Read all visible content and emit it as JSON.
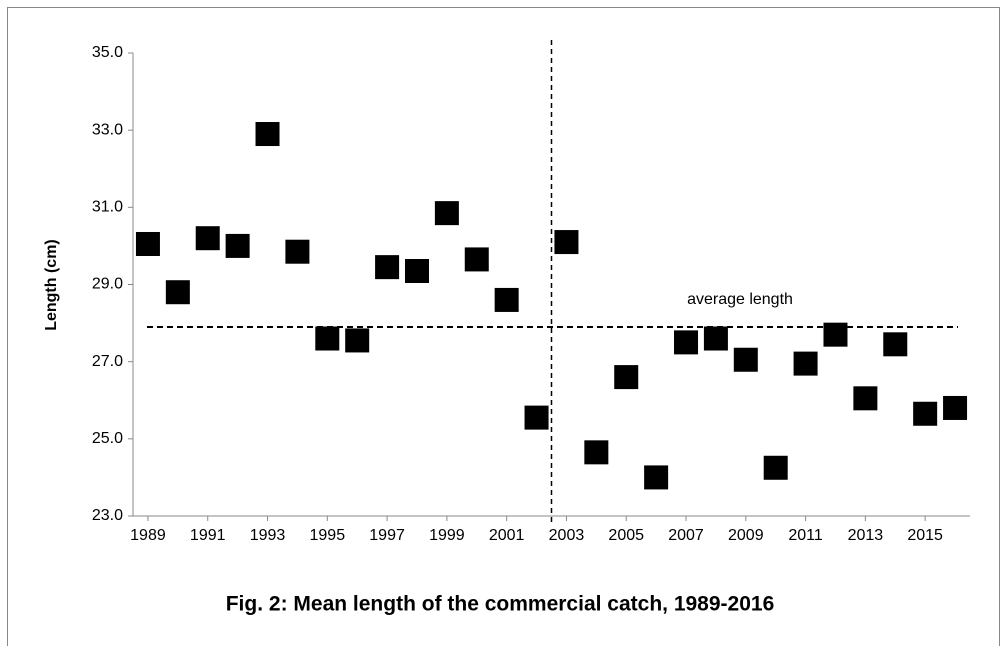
{
  "chart_data": {
    "type": "scatter",
    "title": "Fig. 2: Mean length of the commercial catch, 1989-2016",
    "y_label": "Length (cm)",
    "annotation": "average length",
    "average_line": 27.9,
    "divider_x": 2002.5,
    "x": [
      1989,
      1990,
      1991,
      1992,
      1993,
      1994,
      1995,
      1996,
      1997,
      1998,
      1999,
      2000,
      2001,
      2002,
      2003,
      2004,
      2005,
      2006,
      2007,
      2008,
      2009,
      2010,
      2011,
      2012,
      2013,
      2014,
      2015,
      2016
    ],
    "series": [
      {
        "name": "Mean length",
        "color": "#000000",
        "values": [
          30.05,
          28.8,
          30.2,
          30.0,
          32.9,
          29.85,
          27.6,
          27.55,
          29.45,
          29.35,
          30.85,
          29.65,
          28.6,
          25.55,
          30.1,
          24.65,
          26.6,
          24.0,
          27.5,
          27.6,
          27.05,
          24.25,
          26.95,
          27.7,
          26.05,
          27.45,
          25.65,
          25.8
        ]
      }
    ],
    "xlim": [
      1988.5,
      2016.5
    ],
    "xticks": [
      1989,
      1991,
      1993,
      1995,
      1997,
      1999,
      2001,
      2003,
      2005,
      2007,
      2009,
      2011,
      2013,
      2015
    ],
    "ylim": [
      23,
      35
    ],
    "yticks": [
      {
        "value": 23,
        "label": "23.0"
      },
      {
        "value": 25,
        "label": "25.0"
      },
      {
        "value": 27,
        "label": "27.0"
      },
      {
        "value": 29,
        "label": "29.0"
      },
      {
        "value": 31,
        "label": "31.0"
      },
      {
        "value": 33,
        "label": "33.0"
      },
      {
        "value": 35,
        "label": "35.0"
      }
    ]
  }
}
